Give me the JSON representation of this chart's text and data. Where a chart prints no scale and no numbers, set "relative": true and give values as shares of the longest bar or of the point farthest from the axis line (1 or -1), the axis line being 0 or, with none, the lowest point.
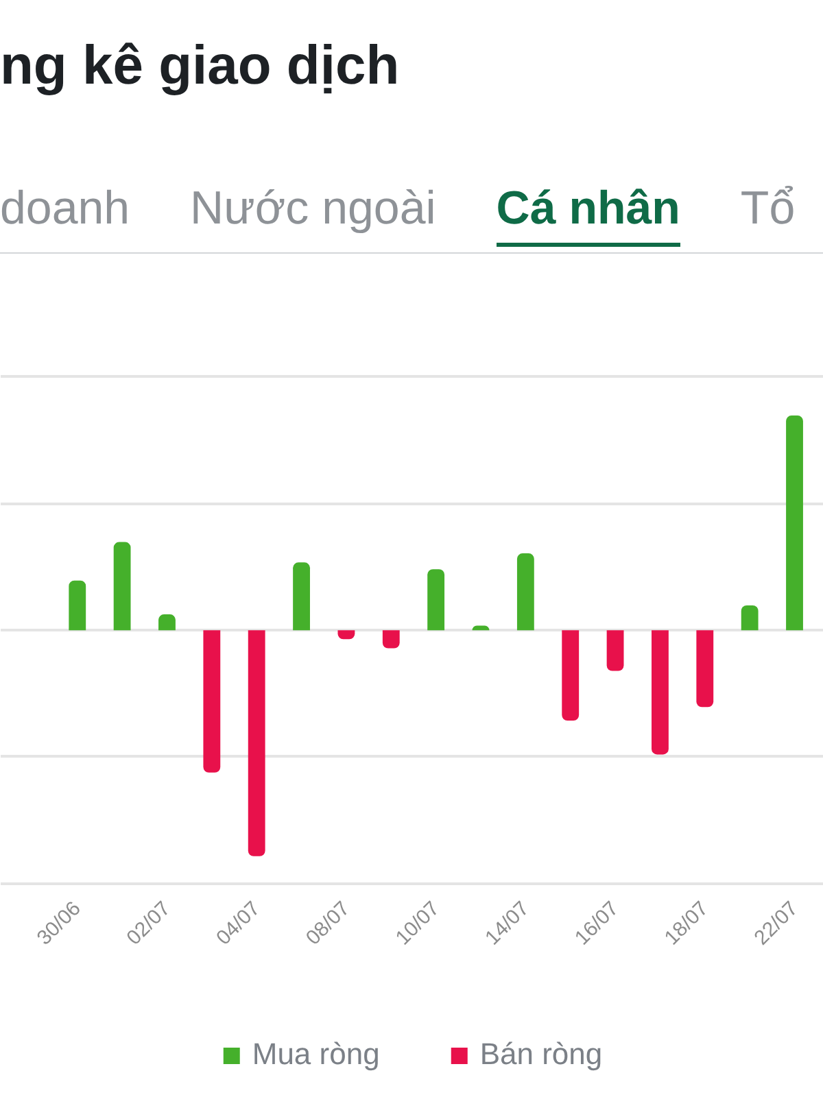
{
  "chart_data": {
    "type": "bar",
    "title": "ng kê giao dịch",
    "annotations": [
      "doanh",
      "Nước ngoài",
      "Cá nhân",
      "Tổ"
    ],
    "categories": [
      "30/06",
      null,
      "02/07",
      null,
      "04/07",
      null,
      "08/07",
      null,
      "10/07",
      null,
      "14/07",
      null,
      "16/07",
      null,
      "18/07",
      null,
      "22/07"
    ],
    "relative": true,
    "series": [
      {
        "name": "Mua ròng",
        "color": "#45b02b",
        "values": [
          0.22,
          0.39,
          0.07,
          null,
          null,
          0.3,
          null,
          null,
          0.27,
          0.02,
          0.34,
          null,
          null,
          null,
          null,
          0.11,
          0.95
        ]
      },
      {
        "name": "Bán ròng",
        "color": "#e8114b",
        "values": [
          null,
          null,
          null,
          -0.63,
          -1,
          null,
          -0.04,
          -0.08,
          null,
          null,
          null,
          -0.4,
          -0.18,
          -0.55,
          -0.34,
          null,
          null
        ]
      }
    ],
    "grid": "y",
    "legend": "bottom"
  }
}
